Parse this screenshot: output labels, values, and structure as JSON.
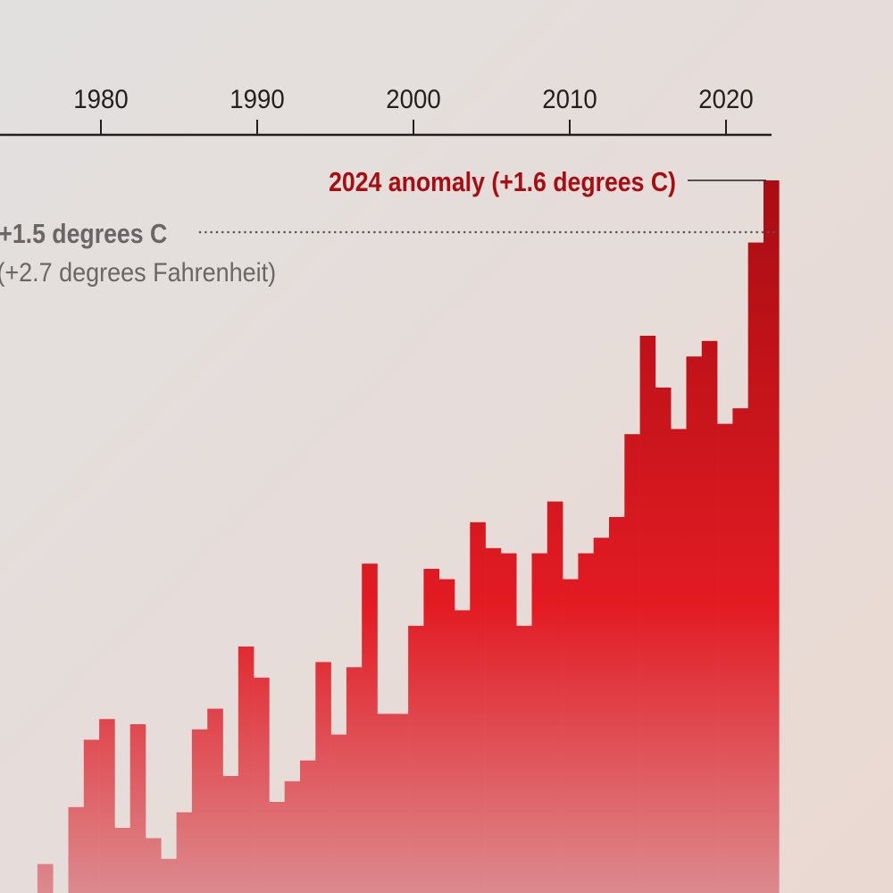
{
  "chart_data": {
    "type": "bar",
    "title": "",
    "xlabel": "",
    "ylabel": "",
    "x_ticks": [
      "1980",
      "1990",
      "2000",
      "2010",
      "2020"
    ],
    "ylim": [
      0.23,
      1.6
    ],
    "grid": false,
    "years": [
      1977,
      1978,
      1979,
      1980,
      1981,
      1982,
      1983,
      1984,
      1985,
      1986,
      1987,
      1988,
      1989,
      1990,
      1991,
      1992,
      1993,
      1994,
      1995,
      1996,
      1997,
      1998,
      1999,
      2000,
      2001,
      2002,
      2003,
      2004,
      2005,
      2006,
      2007,
      2008,
      2009,
      2010,
      2011,
      2012,
      2013,
      2014,
      2015,
      2016,
      2017,
      2018,
      2019,
      2020,
      2021,
      2022,
      2023,
      2024
    ],
    "values": [
      0.28,
      0.2,
      0.39,
      0.52,
      0.56,
      0.35,
      0.55,
      0.33,
      0.29,
      0.38,
      0.54,
      0.58,
      0.45,
      0.7,
      0.64,
      0.4,
      0.44,
      0.48,
      0.67,
      0.53,
      0.66,
      0.86,
      0.57,
      0.57,
      0.74,
      0.85,
      0.83,
      0.77,
      0.94,
      0.89,
      0.88,
      0.74,
      0.88,
      0.98,
      0.83,
      0.88,
      0.91,
      0.95,
      1.11,
      1.3,
      1.2,
      1.12,
      1.26,
      1.29,
      1.13,
      1.16,
      1.48,
      1.6
    ],
    "colors": {
      "bar_bottom": "#dc8a8e",
      "bar_mid": "#e31b23",
      "bar_top": "#a80d12",
      "threshold_label": "#6b6666",
      "highlight_label": "#a80d12"
    },
    "annotations": {
      "highlight": {
        "text": "2024 anomaly (+1.6 degrees C)",
        "value": 1.6
      },
      "threshold": {
        "text": "+1.5 degrees C",
        "subtext": "(+2.7 degrees Fahrenheit)",
        "value": 1.5
      }
    }
  }
}
